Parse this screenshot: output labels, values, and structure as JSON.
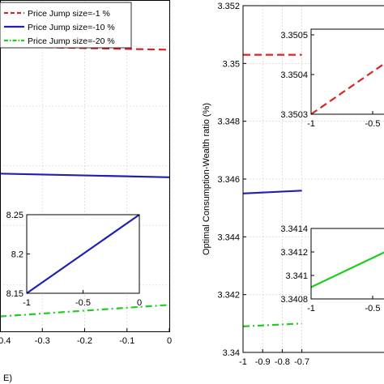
{
  "chart_data": [
    {
      "id": "left-main",
      "type": "line",
      "xlabel": "E)",
      "ylabel": "",
      "xlim": [
        -0.4,
        0
      ],
      "x_ticks": [
        "-0.4",
        "-0.3",
        "-0.2",
        "-0.1",
        "0"
      ],
      "series": [
        {
          "name": "Price Jump size=-1 %",
          "color": "#d62728",
          "style": "dashed",
          "x": [
            -0.4,
            0
          ],
          "y": [
            0.86,
            0.85
          ]
        },
        {
          "name": "Price Jump size=-10 %",
          "color": "#1f1fb4",
          "style": "solid",
          "x": [
            -0.4,
            0
          ],
          "y": [
            0.476,
            0.465
          ]
        },
        {
          "name": "Price Jump size=-20 %",
          "color": "#22cc22",
          "style": "dashdot",
          "x": [
            -0.4,
            0
          ],
          "y": [
            0.045,
            0.08
          ]
        }
      ],
      "legend": "top-left",
      "grid": true
    },
    {
      "id": "left-inset",
      "type": "line",
      "xlim": [
        -1,
        0
      ],
      "ylim": [
        8.15,
        8.25
      ],
      "x_ticks": [
        "-1",
        "-0.5",
        "0"
      ],
      "y_ticks": [
        "8.15",
        "8.2",
        "8.25"
      ],
      "series": [
        {
          "color": "#1f1fb4",
          "style": "solid",
          "x": [
            -1,
            0
          ],
          "y": [
            8.15,
            8.25
          ]
        }
      ]
    },
    {
      "id": "right-main",
      "type": "line",
      "xlabel": "",
      "ylabel": "Optimal Consumption-Wealth ratio (%)",
      "xlim": [
        -1,
        -0.7
      ],
      "ylim": [
        3.34,
        3.352
      ],
      "x_ticks": [
        "-1",
        "-0.9",
        "-0.8",
        "-0.7"
      ],
      "y_ticks": [
        "3.34",
        "3.342",
        "3.344",
        "3.346",
        "3.348",
        "3.35",
        "3.352"
      ],
      "series": [
        {
          "color": "#d62728",
          "style": "dashed",
          "x": [
            -1,
            -0.7
          ],
          "y": [
            3.3503,
            3.3503
          ]
        },
        {
          "color": "#1f1fb4",
          "style": "solid",
          "x": [
            -1,
            -0.7
          ],
          "y": [
            3.3455,
            3.3456
          ]
        },
        {
          "color": "#22cc22",
          "style": "dashdot",
          "x": [
            -1,
            -0.7
          ],
          "y": [
            3.3409,
            3.341
          ]
        }
      ],
      "grid": true
    },
    {
      "id": "right-inset-top",
      "type": "line",
      "xlim": [
        -1,
        -0.3
      ],
      "ylim": [
        3.3503,
        3.3505
      ],
      "x_ticks": [
        "-1",
        "-0.5"
      ],
      "y_ticks": [
        "3.3503",
        "3.3504",
        "3.3505"
      ],
      "series": [
        {
          "color": "#d62728",
          "style": "dashed",
          "x": [
            -1,
            -0.3
          ],
          "y": [
            3.3503,
            3.35045
          ]
        }
      ]
    },
    {
      "id": "right-inset-bottom",
      "type": "line",
      "xlim": [
        -1,
        -0.3
      ],
      "ylim": [
        3.3408,
        3.3414
      ],
      "x_ticks": [
        "-1",
        "-0.5"
      ],
      "y_ticks": [
        "3.3408",
        "3.341",
        "3.3412",
        "3.3414"
      ],
      "series": [
        {
          "color": "#22cc22",
          "style": "solid",
          "x": [
            -1,
            -0.3
          ],
          "y": [
            3.3409,
            3.34125
          ]
        }
      ]
    }
  ]
}
